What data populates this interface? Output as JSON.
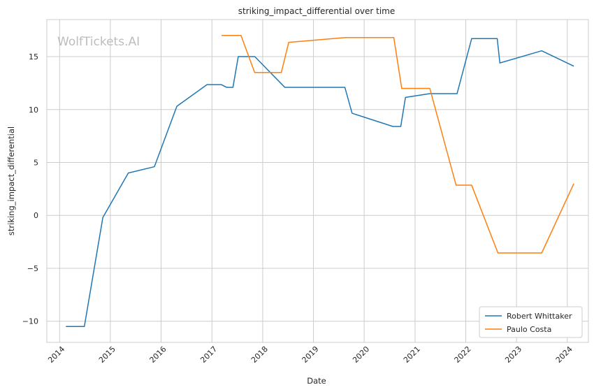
{
  "chart_data": {
    "type": "line",
    "title": "striking_impact_differential over time",
    "xlabel": "Date",
    "ylabel": "striking_impact_differential",
    "watermark": "WolfTickets.AI",
    "xlim": [
      "2013-10-01",
      "2024-06-01"
    ],
    "ylim": [
      -12,
      18.5
    ],
    "x_ticks": [
      "2014",
      "2015",
      "2016",
      "2017",
      "2018",
      "2019",
      "2020",
      "2021",
      "2022",
      "2023",
      "2024"
    ],
    "y_ticks": [
      -10,
      -5,
      0,
      5,
      10,
      15
    ],
    "y_tick_labels": [
      "−10",
      "−5",
      "0",
      "5",
      "10",
      "15"
    ],
    "grid": true,
    "legend_position": "lower-right",
    "series": [
      {
        "name": "Robert Whittaker",
        "color": "#1f77b4",
        "points": [
          [
            "2014-02-15",
            -10.5
          ],
          [
            "2014-06-28",
            -10.5
          ],
          [
            "2014-11-08",
            -0.2
          ],
          [
            "2015-05-10",
            4.0
          ],
          [
            "2015-11-14",
            4.6
          ],
          [
            "2016-04-23",
            10.3
          ],
          [
            "2016-11-26",
            12.35
          ],
          [
            "2017-03-10",
            12.35
          ],
          [
            "2017-04-16",
            12.1
          ],
          [
            "2017-06-01",
            12.1
          ],
          [
            "2017-07-09",
            15.0
          ],
          [
            "2017-11-05",
            15.0
          ],
          [
            "2018-06-09",
            12.1
          ],
          [
            "2019-08-15",
            12.1
          ],
          [
            "2019-10-06",
            9.65
          ],
          [
            "2020-07-26",
            8.4
          ],
          [
            "2020-09-20",
            8.4
          ],
          [
            "2020-10-24",
            11.15
          ],
          [
            "2021-04-17",
            11.5
          ],
          [
            "2021-10-30",
            11.5
          ],
          [
            "2022-02-12",
            16.7
          ],
          [
            "2022-08-15",
            16.7
          ],
          [
            "2022-09-03",
            14.4
          ],
          [
            "2023-07-01",
            15.55
          ],
          [
            "2024-02-17",
            14.1
          ]
        ]
      },
      {
        "name": "Paulo Costa",
        "color": "#ff7f0e",
        "points": [
          [
            "2017-03-11",
            17.0
          ],
          [
            "2017-07-29",
            17.0
          ],
          [
            "2017-11-04",
            13.5
          ],
          [
            "2018-05-15",
            13.5
          ],
          [
            "2018-07-07",
            16.35
          ],
          [
            "2019-08-17",
            16.8
          ],
          [
            "2020-08-01",
            16.8
          ],
          [
            "2020-09-27",
            12.0
          ],
          [
            "2021-04-17",
            12.0
          ],
          [
            "2021-10-23",
            2.85
          ],
          [
            "2022-02-12",
            2.85
          ],
          [
            "2022-08-20",
            -3.55
          ],
          [
            "2023-07-01",
            -3.55
          ],
          [
            "2024-02-17",
            3.0
          ]
        ]
      }
    ]
  }
}
